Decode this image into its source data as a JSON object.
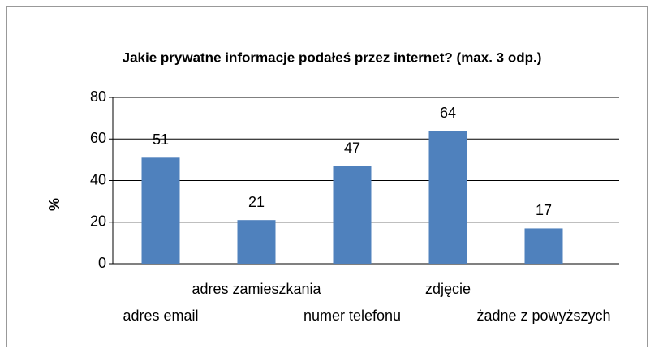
{
  "chart_data": {
    "type": "bar",
    "title": "Jakie prywatne informacje podałeś przez internet? (max. 3 odp.)",
    "y_label": "%",
    "categories": [
      "adres email",
      "adres zamieszkania",
      "numer telefonu",
      "zdjęcie",
      "żadne z powyższych"
    ],
    "values": [
      51,
      21,
      47,
      64,
      17
    ],
    "color": "#4f81bd",
    "ylim": [
      0,
      80
    ],
    "yticks": [
      0,
      20,
      40,
      60,
      80
    ],
    "grid": true
  }
}
